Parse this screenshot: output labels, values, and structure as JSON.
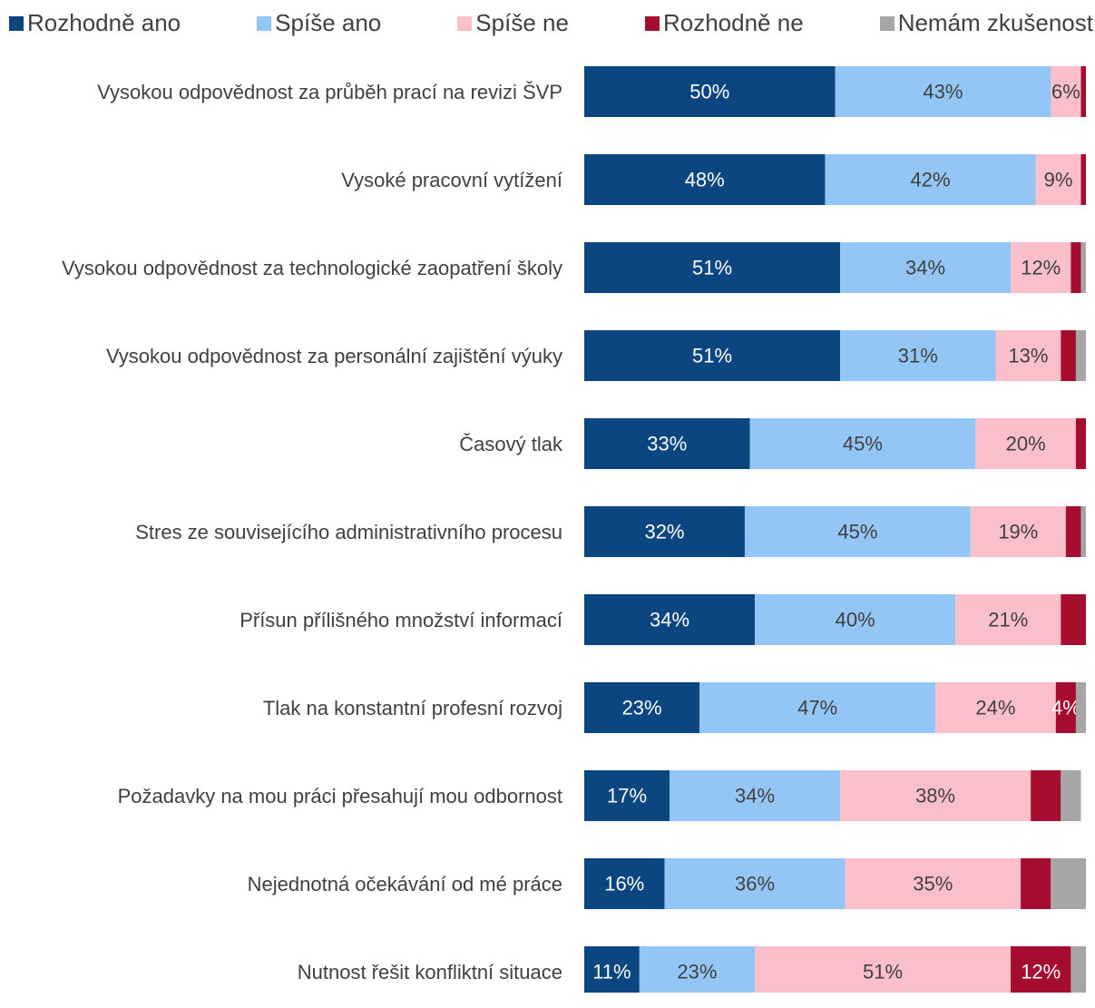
{
  "chart_data": {
    "type": "stacked-bar-horizontal",
    "categories": [
      "Vysokou odpovědnost za průběh prací na revizi ŠVP",
      "Vysoké pracovní vytížení",
      "Vysokou odpovědnost za technologické zaopatření školy",
      "Vysokou odpovědnost za personální zajištění výuky",
      "Časový tlak",
      "Stres ze souvisejícího administrativního procesu",
      "Přísun přílišného množství informací",
      "Tlak na konstantní profesní rozvoj",
      "Požadavky na mou práci přesahují mou odbornost",
      "Nejednotná očekávání od mé práce",
      "Nutnost řešit konfliktní situace"
    ],
    "xlim": [
      0,
      100
    ],
    "series": [
      {
        "name": "Rozhodně ano",
        "color": "#0b4680",
        "label_color": "#ffffff",
        "values": [
          50,
          48,
          51,
          51,
          33,
          32,
          34,
          23,
          17,
          16,
          11
        ],
        "value_labels": [
          "50%",
          "48%",
          "51%",
          "51%",
          "33%",
          "32%",
          "34%",
          "23%",
          "17%",
          "16%",
          "11%"
        ]
      },
      {
        "name": "Spíše ano",
        "color": "#94c6f5",
        "label_color": "#404040",
        "values": [
          43,
          42,
          34,
          31,
          45,
          45,
          40,
          47,
          34,
          36,
          23
        ],
        "value_labels": [
          "43%",
          "42%",
          "34%",
          "31%",
          "45%",
          "45%",
          "40%",
          "47%",
          "34%",
          "36%",
          "23%"
        ]
      },
      {
        "name": "Spíše ne",
        "color": "#f9bfcb",
        "label_color": "#404040",
        "values": [
          6,
          9,
          12,
          13,
          20,
          19,
          21,
          24,
          38,
          35,
          51
        ],
        "value_labels": [
          "6%",
          "9%",
          "12%",
          "13%",
          "20%",
          "19%",
          "21%",
          "24%",
          "38%",
          "35%",
          "51%"
        ]
      },
      {
        "name": "Rozhodně ne",
        "color": "#a50d2e",
        "label_color": "#ffffff",
        "values": [
          1,
          1,
          2,
          3,
          2,
          3,
          5,
          4,
          6,
          6,
          12
        ],
        "value_labels": [
          null,
          null,
          null,
          null,
          null,
          null,
          null,
          "4%",
          null,
          null,
          "12%"
        ]
      },
      {
        "name": "Nemám zkušenost",
        "color": "#a6a6a6",
        "label_color": "#404040",
        "values": [
          0,
          0,
          1,
          2,
          0,
          1,
          0,
          2,
          4,
          7,
          3
        ],
        "value_labels": [
          null,
          null,
          null,
          null,
          null,
          null,
          null,
          null,
          null,
          null,
          null
        ]
      }
    ]
  }
}
